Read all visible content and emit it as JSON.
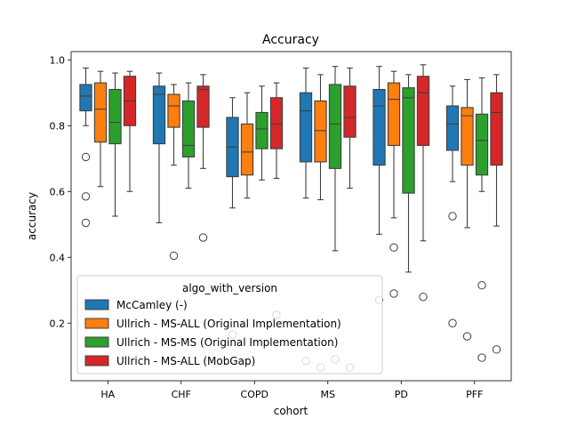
{
  "chart_data": {
    "type": "box",
    "title": "Accuracy",
    "xlabel": "cohort",
    "ylabel": "accuracy",
    "ylim": [
      0.025,
      1.025
    ],
    "yticks": [
      0.2,
      0.4,
      0.6,
      0.8,
      1.0
    ],
    "ytick_labels": [
      "0.2",
      "0.4",
      "0.6",
      "0.8",
      "1.0"
    ],
    "grid": false,
    "legend": {
      "title": "algo_with_version",
      "placement": "lower-left"
    },
    "categories": [
      "HA",
      "CHF",
      "COPD",
      "MS",
      "PD",
      "PFF"
    ],
    "series": [
      {
        "name": "McCamley (-)",
        "color": "#1f77b4",
        "boxes": [
          {
            "whislo": 0.8,
            "q1": 0.845,
            "med": 0.89,
            "q3": 0.925,
            "whishi": 0.975,
            "fliers": [
              0.705,
              0.585,
              0.505
            ]
          },
          {
            "whislo": 0.505,
            "q1": 0.745,
            "med": 0.895,
            "q3": 0.92,
            "whishi": 0.96,
            "fliers": []
          },
          {
            "whislo": 0.55,
            "q1": 0.645,
            "med": 0.735,
            "q3": 0.825,
            "whishi": 0.885,
            "fliers": [
              0.165
            ]
          },
          {
            "whislo": 0.58,
            "q1": 0.69,
            "med": 0.845,
            "q3": 0.9,
            "whishi": 0.975,
            "fliers": [
              0.085
            ]
          },
          {
            "whislo": 0.47,
            "q1": 0.68,
            "med": 0.86,
            "q3": 0.91,
            "whishi": 0.98,
            "fliers": [
              0.27
            ]
          },
          {
            "whislo": 0.63,
            "q1": 0.725,
            "med": 0.805,
            "q3": 0.86,
            "whishi": 0.92,
            "fliers": [
              0.525,
              0.2
            ]
          }
        ]
      },
      {
        "name": "Ullrich - MS-ALL (Original Implementation)",
        "color": "#ff7f0e",
        "boxes": [
          {
            "whislo": 0.615,
            "q1": 0.75,
            "med": 0.85,
            "q3": 0.93,
            "whishi": 0.965,
            "fliers": []
          },
          {
            "whislo": 0.68,
            "q1": 0.795,
            "med": 0.86,
            "q3": 0.895,
            "whishi": 0.925,
            "fliers": [
              0.405
            ]
          },
          {
            "whislo": 0.58,
            "q1": 0.65,
            "med": 0.72,
            "q3": 0.805,
            "whishi": 0.9,
            "fliers": []
          },
          {
            "whislo": 0.575,
            "q1": 0.69,
            "med": 0.785,
            "q3": 0.875,
            "whishi": 0.955,
            "fliers": [
              0.065
            ]
          },
          {
            "whislo": 0.52,
            "q1": 0.74,
            "med": 0.88,
            "q3": 0.93,
            "whishi": 0.965,
            "fliers": [
              0.43,
              0.29
            ]
          },
          {
            "whislo": 0.49,
            "q1": 0.68,
            "med": 0.83,
            "q3": 0.855,
            "whishi": 0.94,
            "fliers": [
              0.16
            ]
          }
        ]
      },
      {
        "name": "Ullrich - MS-MS (Original Implementation)",
        "color": "#2ca02c",
        "boxes": [
          {
            "whislo": 0.525,
            "q1": 0.745,
            "med": 0.81,
            "q3": 0.91,
            "whishi": 0.96,
            "fliers": []
          },
          {
            "whislo": 0.61,
            "q1": 0.705,
            "med": 0.74,
            "q3": 0.875,
            "whishi": 0.93,
            "fliers": []
          },
          {
            "whislo": 0.635,
            "q1": 0.73,
            "med": 0.79,
            "q3": 0.84,
            "whishi": 0.92,
            "fliers": []
          },
          {
            "whislo": 0.42,
            "q1": 0.67,
            "med": 0.805,
            "q3": 0.925,
            "whishi": 0.98,
            "fliers": [
              0.09
            ]
          },
          {
            "whislo": 0.355,
            "q1": 0.595,
            "med": 0.885,
            "q3": 0.915,
            "whishi": 0.955,
            "fliers": []
          },
          {
            "whislo": 0.6,
            "q1": 0.65,
            "med": 0.755,
            "q3": 0.835,
            "whishi": 0.945,
            "fliers": [
              0.315,
              0.095
            ]
          }
        ]
      },
      {
        "name": "Ullrich - MS-ALL (MobGap)",
        "color": "#d62728",
        "boxes": [
          {
            "whislo": 0.6,
            "q1": 0.8,
            "med": 0.875,
            "q3": 0.95,
            "whishi": 0.965,
            "fliers": []
          },
          {
            "whislo": 0.67,
            "q1": 0.795,
            "med": 0.91,
            "q3": 0.92,
            "whishi": 0.955,
            "fliers": [
              0.46
            ]
          },
          {
            "whislo": 0.64,
            "q1": 0.73,
            "med": 0.805,
            "q3": 0.885,
            "whishi": 0.93,
            "fliers": [
              0.225
            ]
          },
          {
            "whislo": 0.61,
            "q1": 0.765,
            "med": 0.825,
            "q3": 0.92,
            "whishi": 0.975,
            "fliers": [
              0.065
            ]
          },
          {
            "whislo": 0.45,
            "q1": 0.74,
            "med": 0.9,
            "q3": 0.95,
            "whishi": 0.985,
            "fliers": [
              0.28
            ]
          },
          {
            "whislo": 0.495,
            "q1": 0.68,
            "med": 0.84,
            "q3": 0.9,
            "whishi": 0.955,
            "fliers": [
              0.12
            ]
          }
        ]
      }
    ]
  }
}
